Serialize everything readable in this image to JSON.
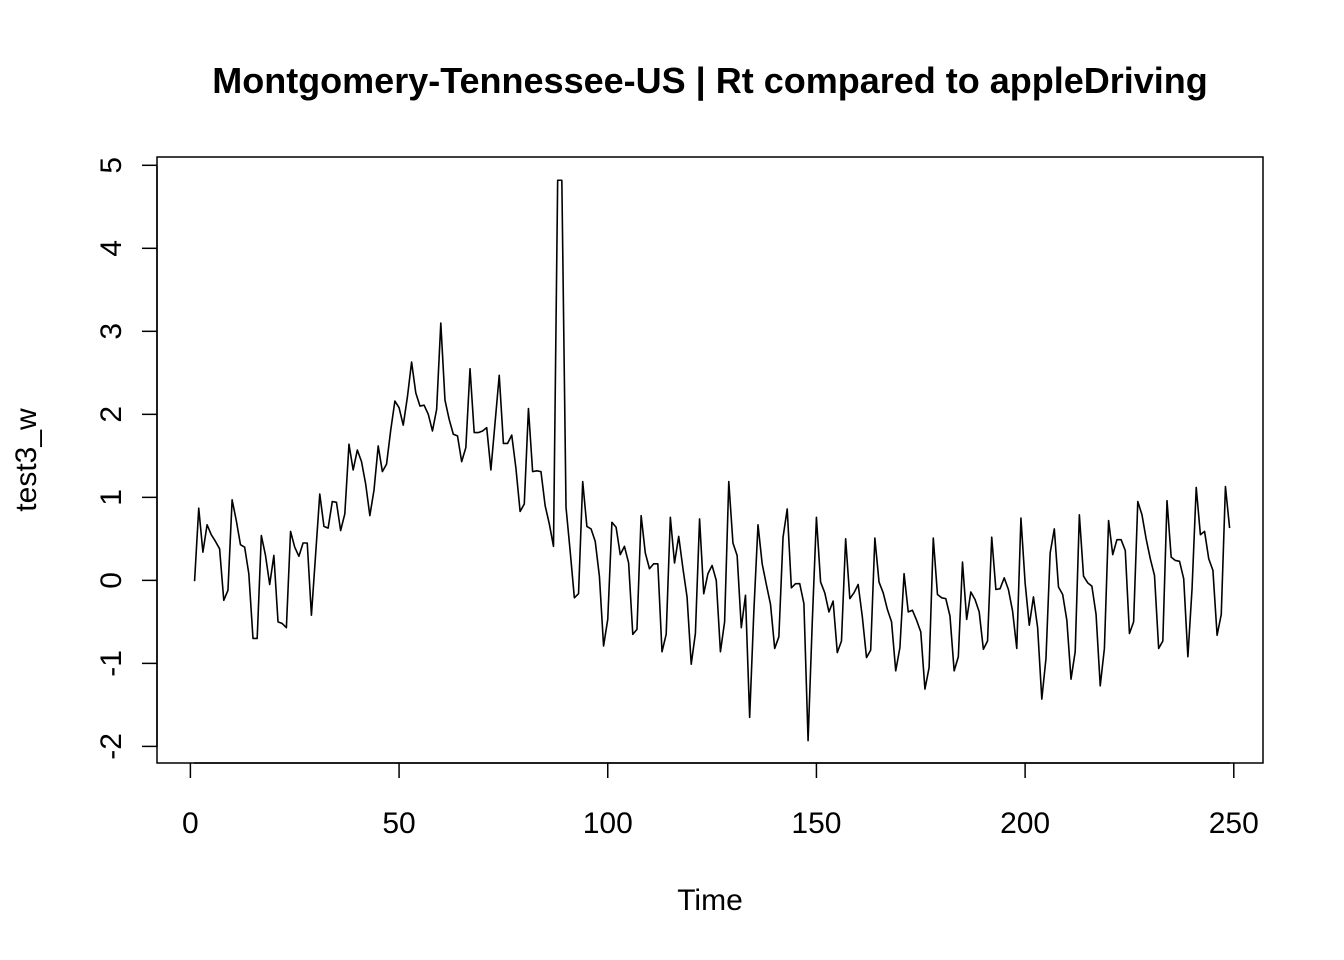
{
  "chart_data": {
    "type": "line",
    "title": "Montgomery-Tennessee-US | Rt compared to appleDriving",
    "xlabel": "Time",
    "ylabel": "test3_w",
    "xlim": [
      -8,
      257
    ],
    "ylim": [
      -2.2,
      5.1
    ],
    "x_ticks": [
      0,
      50,
      100,
      150,
      200,
      250
    ],
    "y_ticks": [
      -2,
      -1,
      0,
      1,
      2,
      3,
      4,
      5
    ],
    "x_tick_labels": [
      "0",
      "50",
      "100",
      "150",
      "200",
      "250"
    ],
    "y_tick_labels": [
      "-2",
      "-1",
      "0",
      "1",
      "2",
      "3",
      "4",
      "5"
    ],
    "grid": false,
    "series": [
      {
        "x_start": 1,
        "x_step": 1,
        "values": [
          -0.01,
          0.87,
          0.34,
          0.67,
          0.55,
          0.47,
          0.38,
          -0.24,
          -0.12,
          0.97,
          0.72,
          0.43,
          0.4,
          0.08,
          -0.7,
          -0.7,
          0.54,
          0.3,
          -0.05,
          0.3,
          -0.5,
          -0.52,
          -0.57,
          0.59,
          0.4,
          0.29,
          0.45,
          0.45,
          -0.42,
          0.31,
          1.04,
          0.65,
          0.63,
          0.95,
          0.94,
          0.6,
          0.8,
          1.64,
          1.33,
          1.57,
          1.43,
          1.16,
          0.78,
          1.09,
          1.62,
          1.31,
          1.4,
          1.81,
          2.16,
          2.08,
          1.87,
          2.21,
          2.63,
          2.26,
          2.1,
          2.11,
          2.0,
          1.8,
          2.06,
          3.1,
          2.17,
          1.94,
          1.76,
          1.74,
          1.43,
          1.6,
          2.55,
          1.78,
          1.78,
          1.8,
          1.84,
          1.33,
          1.9,
          2.47,
          1.65,
          1.65,
          1.75,
          1.35,
          0.83,
          0.92,
          2.07,
          1.31,
          1.32,
          1.31,
          0.9,
          0.68,
          0.41,
          4.82,
          4.82,
          0.88,
          0.35,
          -0.21,
          -0.16,
          1.19,
          0.65,
          0.62,
          0.47,
          0.05,
          -0.79,
          -0.47,
          0.7,
          0.64,
          0.31,
          0.41,
          0.21,
          -0.65,
          -0.59,
          0.78,
          0.33,
          0.14,
          0.2,
          0.2,
          -0.86,
          -0.65,
          0.76,
          0.21,
          0.53,
          0.15,
          -0.2,
          -1.01,
          -0.64,
          0.74,
          -0.16,
          0.08,
          0.18,
          0.0,
          -0.86,
          -0.5,
          1.19,
          0.45,
          0.3,
          -0.57,
          -0.18,
          -1.65,
          -0.38,
          0.67,
          0.2,
          -0.05,
          -0.29,
          -0.82,
          -0.68,
          0.52,
          0.86,
          -0.09,
          -0.04,
          -0.04,
          -0.28,
          -1.93,
          -0.51,
          0.76,
          -0.02,
          -0.15,
          -0.38,
          -0.25,
          -0.87,
          -0.73,
          0.5,
          -0.22,
          -0.15,
          -0.05,
          -0.44,
          -0.93,
          -0.84,
          0.51,
          -0.02,
          -0.15,
          -0.35,
          -0.5,
          -1.09,
          -0.81,
          0.08,
          -0.38,
          -0.36,
          -0.48,
          -0.62,
          -1.31,
          -1.05,
          0.51,
          -0.17,
          -0.21,
          -0.22,
          -0.43,
          -1.09,
          -0.92,
          0.22,
          -0.47,
          -0.14,
          -0.23,
          -0.38,
          -0.83,
          -0.73,
          0.52,
          -0.11,
          -0.1,
          0.03,
          -0.11,
          -0.37,
          -0.82,
          0.75,
          -0.03,
          -0.54,
          -0.2,
          -0.57,
          -1.43,
          -0.94,
          0.33,
          0.62,
          -0.08,
          -0.17,
          -0.48,
          -1.19,
          -0.86,
          0.79,
          0.05,
          -0.03,
          -0.07,
          -0.41,
          -1.27,
          -0.82,
          0.72,
          0.31,
          0.49,
          0.49,
          0.36,
          -0.64,
          -0.5,
          0.95,
          0.79,
          0.5,
          0.26,
          0.06,
          -0.82,
          -0.73,
          0.96,
          0.28,
          0.24,
          0.23,
          0.02,
          -0.92,
          -0.1,
          1.12,
          0.55,
          0.59,
          0.26,
          0.12,
          -0.66,
          -0.41,
          1.13,
          0.63
        ]
      }
    ]
  }
}
